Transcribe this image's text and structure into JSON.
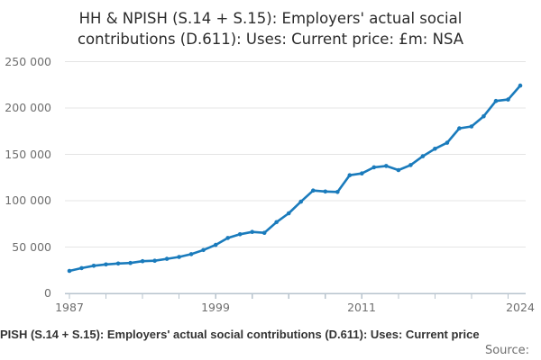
{
  "title": {
    "line1": "HH & NPISH (S.14 + S.15): Employers' actual social",
    "line2": "contributions (D.611): Uses: Current price: £m: NSA"
  },
  "axis": {
    "y_tick_labels": [
      "250 000",
      "200 000",
      "150 000",
      "100 000",
      "50 000",
      "0"
    ],
    "x_tick_labels": [
      "1987",
      "1999",
      "2011",
      "2024"
    ]
  },
  "footer": {
    "series_caption": "PISH (S.14 + S.15): Employers' actual social contributions (D.611): Uses: Current price",
    "source_label": "Source:"
  },
  "chart_data": {
    "type": "line",
    "title": "HH & NPISH (S.14 + S.15): Employers' actual social contributions (D.611): Uses: Current price: £m: NSA",
    "x": [
      1987,
      1988,
      1989,
      1990,
      1991,
      1992,
      1993,
      1994,
      1995,
      1996,
      1997,
      1998,
      1999,
      2000,
      2001,
      2002,
      2003,
      2004,
      2005,
      2006,
      2007,
      2008,
      2009,
      2010,
      2011,
      2012,
      2013,
      2014,
      2015,
      2016,
      2017,
      2018,
      2019,
      2020,
      2021,
      2022,
      2023,
      2024
    ],
    "values": [
      24500,
      27500,
      30000,
      31500,
      32500,
      33000,
      35000,
      35500,
      37500,
      39500,
      42500,
      47000,
      52500,
      60000,
      64000,
      66500,
      65500,
      77000,
      86500,
      99000,
      111000,
      110000,
      109500,
      127500,
      129500,
      136000,
      137500,
      133000,
      138500,
      148000,
      156000,
      162500,
      178000,
      180000,
      191000,
      207500,
      209000,
      224000
    ],
    "xlabel": "",
    "ylabel": "",
    "ylim": [
      0,
      250000
    ],
    "y_ticks": [
      0,
      50000,
      100000,
      150000,
      200000,
      250000
    ],
    "x_labeled_years": [
      1987,
      1999,
      2011,
      2024
    ],
    "x_tick_step_years": 3,
    "grid": "horizontal",
    "legend": "none",
    "line_color": "#1a7bbc",
    "grid_color": "#e4e4e4",
    "axis_color": "#b7c3cd",
    "marker": "circle"
  }
}
